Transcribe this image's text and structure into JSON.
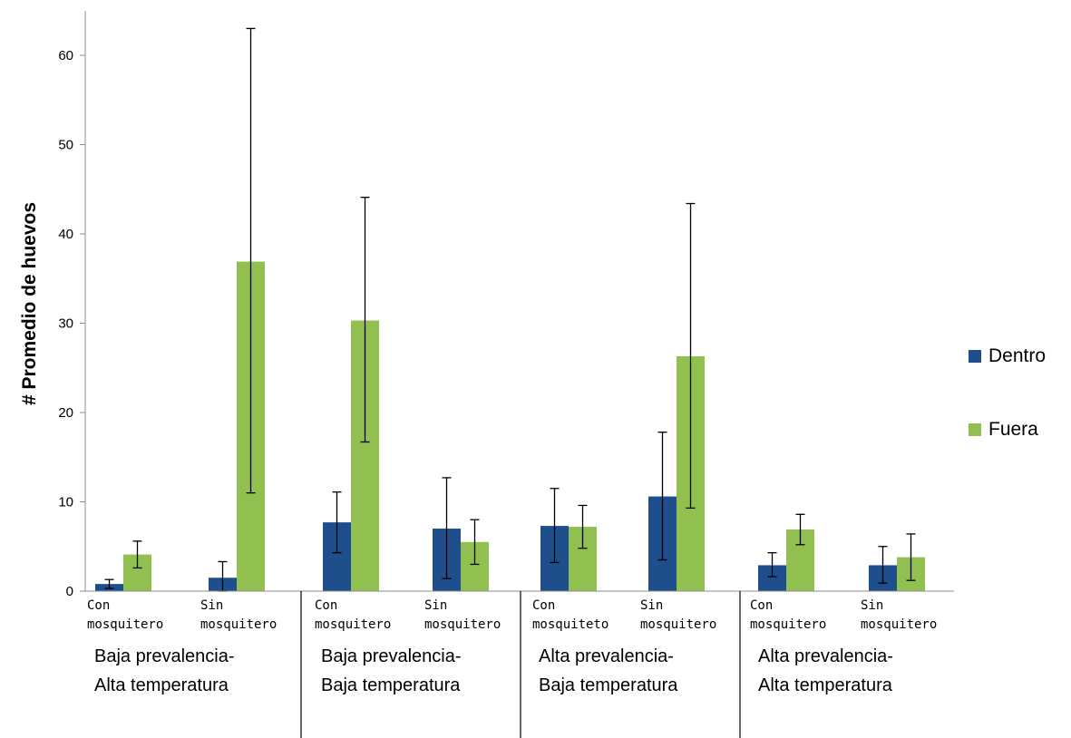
{
  "chart_data": {
    "type": "bar",
    "ylabel": "# Promedio de huevos",
    "ylim": [
      0,
      65
    ],
    "yticks": [
      0,
      10,
      20,
      30,
      40,
      50,
      60
    ],
    "grid": false,
    "legend_position": "right",
    "groups": [
      {
        "label_line1": "Baja prevalencia-",
        "label_line2": "Alta temperatura"
      },
      {
        "label_line1": "Baja prevalencia-",
        "label_line2": "Baja temperatura"
      },
      {
        "label_line1": "Alta prevalencia-",
        "label_line2": "Baja temperatura"
      },
      {
        "label_line1": "Alta prevalencia-",
        "label_line2": "Alta temperatura"
      }
    ],
    "categories": [
      {
        "line1": "Con",
        "line2": "mosquitero"
      },
      {
        "line1": "Sin",
        "line2": "mosquitero"
      },
      {
        "line1": "Con",
        "line2": "mosquitero"
      },
      {
        "line1": "Sin",
        "line2": "mosquitero"
      },
      {
        "line1": "Con",
        "line2": "mosquiteto"
      },
      {
        "line1": "Sin",
        "line2": "mosquitero"
      },
      {
        "line1": "Con",
        "line2": "mosquitero"
      },
      {
        "line1": "Sin",
        "line2": "mosquitero"
      }
    ],
    "series": [
      {
        "name": "Dentro",
        "color": "#1f4e8c",
        "values": [
          0.8,
          1.5,
          7.7,
          7.0,
          7.3,
          10.6,
          2.9,
          2.9
        ],
        "err_low": [
          0.3,
          0.0,
          4.3,
          1.4,
          3.2,
          3.5,
          1.6,
          0.9
        ],
        "err_high": [
          1.3,
          3.3,
          11.1,
          12.7,
          11.5,
          17.8,
          4.3,
          5.0
        ]
      },
      {
        "name": "Fuera",
        "color": "#92c050",
        "values": [
          4.1,
          36.9,
          30.3,
          5.5,
          7.2,
          26.3,
          6.9,
          3.8
        ],
        "err_low": [
          2.6,
          11.0,
          16.7,
          3.0,
          4.8,
          9.3,
          5.2,
          1.2
        ],
        "err_high": [
          5.6,
          63.0,
          44.1,
          8.0,
          9.6,
          43.4,
          8.6,
          6.4
        ]
      }
    ]
  }
}
